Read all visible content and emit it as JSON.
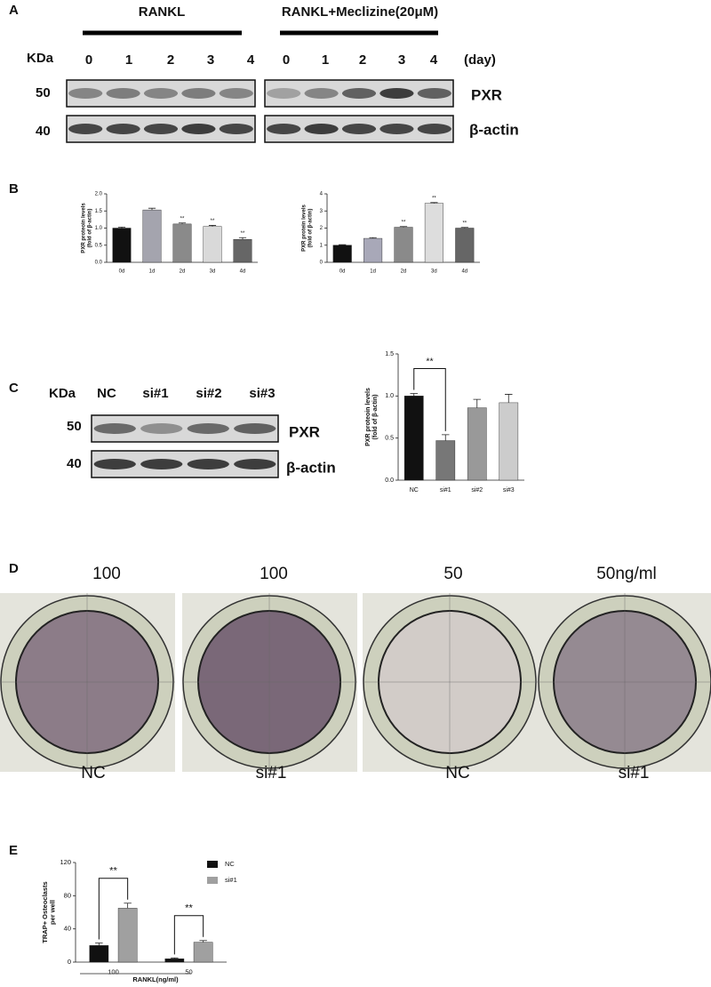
{
  "panel_a": {
    "label": "A",
    "groups": [
      "RANKL",
      "RANKL+Meclizine(20μM)"
    ],
    "kda_label": "KDa",
    "lanes": [
      "0",
      "1",
      "2",
      "3",
      "4",
      "0",
      "1",
      "2",
      "3",
      "4"
    ],
    "lane_unit": "(day)",
    "markers": [
      "50",
      "40"
    ],
    "proteins": [
      "PXR",
      "β-actin"
    ]
  },
  "panel_b": {
    "label": "B"
  },
  "panel_c": {
    "label": "C",
    "kda_label": "KDa",
    "lanes": [
      "NC",
      "si#1",
      "si#2",
      "si#3"
    ],
    "markers": [
      "50",
      "40"
    ],
    "proteins": [
      "PXR",
      "β-actin"
    ]
  },
  "panel_d": {
    "label": "D",
    "doses": [
      "100",
      "100",
      "50",
      "50ng/ml"
    ],
    "groups": [
      "NC",
      "si#1",
      "NC",
      "si#1"
    ]
  },
  "panel_e": {
    "label": "E"
  },
  "chart_data": [
    {
      "type": "bar",
      "y_label": [
        "PXR proteoin levels",
        "(fold of β-actin)"
      ],
      "categories": [
        "0d",
        "1d",
        "2d",
        "3d",
        "4d"
      ],
      "values": [
        1.0,
        1.53,
        1.12,
        1.05,
        0.67
      ],
      "errors": [
        0.03,
        0.05,
        0.03,
        0.03,
        0.05
      ],
      "colors": [
        "#111111",
        "#a4a4ae",
        "#8a8a8a",
        "#d9d9d9",
        "#666666"
      ],
      "significance": [
        null,
        null,
        "**",
        "**",
        "**"
      ],
      "ylim": [
        0,
        2.0
      ],
      "yticks": [
        {
          "value": 0,
          "label": "0.0"
        },
        0.5,
        {
          "value": 1.0,
          "label": "1.0"
        },
        1.5,
        {
          "value": 2.0,
          "label": "2.0"
        }
      ]
    },
    {
      "type": "bar",
      "y_label": [
        "PXR protein levels",
        "(fold of β-actin)"
      ],
      "categories": [
        "0d",
        "1d",
        "2d",
        "3d",
        "4d"
      ],
      "values": [
        1.0,
        1.4,
        2.05,
        3.45,
        2.0
      ],
      "errors": [
        0.03,
        0.04,
        0.04,
        0.04,
        0.04
      ],
      "colors": [
        "#111111",
        "#a8a8b8",
        "#8a8a8a",
        "#dddddd",
        "#666666"
      ],
      "significance": [
        null,
        null,
        "**",
        "**",
        "**"
      ],
      "ylim": [
        0,
        4
      ],
      "yticks": [
        0,
        1,
        2,
        3,
        4
      ]
    },
    {
      "type": "bar",
      "y_label": [
        "PXR proteoin levels",
        "(fold of β-actin)"
      ],
      "categories": [
        "NC",
        "si#1",
        "si#2",
        "si#3"
      ],
      "values": [
        1.0,
        0.47,
        0.86,
        0.92
      ],
      "errors": [
        0.03,
        0.07,
        0.1,
        0.1
      ],
      "colors": [
        "#111111",
        "#777777",
        "#999999",
        "#cccccc"
      ],
      "significance": [
        null,
        "**",
        null,
        null
      ],
      "significance_brackets": true,
      "ylim": [
        0,
        1.5
      ],
      "yticks": [
        {
          "value": 0,
          "label": "0.0"
        },
        0.5,
        {
          "value": 1.0,
          "label": "1.0"
        },
        1.5
      ]
    },
    {
      "type": "bar",
      "y_label": [
        "TRAP+ Osteoclasts",
        "per well"
      ],
      "x_label": "RANKL(ng/ml)",
      "categories": [
        "100",
        "50"
      ],
      "series": [
        {
          "name": "NC",
          "color": "#111111",
          "values": [
            20,
            4
          ],
          "errors": [
            3,
            1
          ]
        },
        {
          "name": "si#1",
          "color": "#a0a0a0",
          "values": [
            65,
            24
          ],
          "errors": [
            6,
            2
          ]
        }
      ],
      "significance": [
        "**",
        "**"
      ],
      "significance_brackets": true,
      "ylim": [
        0,
        120
      ],
      "yticks": [
        0,
        40,
        80,
        120
      ]
    }
  ]
}
